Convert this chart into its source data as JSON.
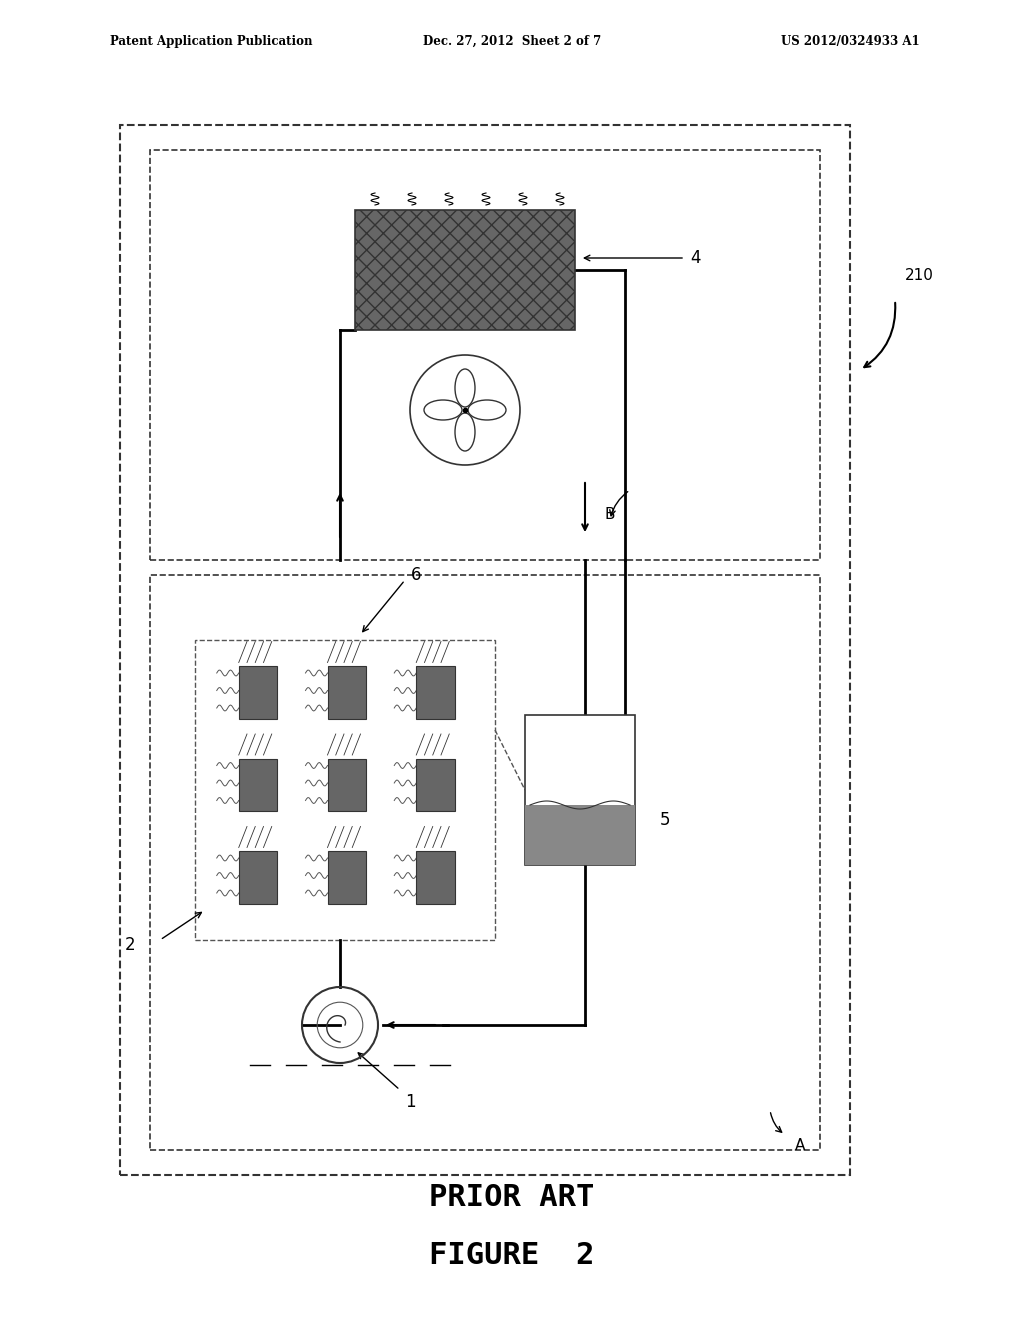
{
  "title_left": "Patent Application Publication",
  "title_center": "Dec. 27, 2012  Sheet 2 of 7",
  "title_right": "US 2012/0324933 A1",
  "prior_art_text": "PRIOR ART",
  "figure_text": "FIGURE  2",
  "label_1": "1",
  "label_2": "2",
  "label_4": "4",
  "label_5": "5",
  "label_6": "6",
  "label_B": "B",
  "label_A": "A",
  "label_210": "210",
  "bg_color": "#ffffff",
  "box_color": "#000000",
  "dashed_color": "#555555",
  "condenser_fill": "#555555",
  "reservoir_fill": "#888888",
  "chip_fill": "#777777"
}
